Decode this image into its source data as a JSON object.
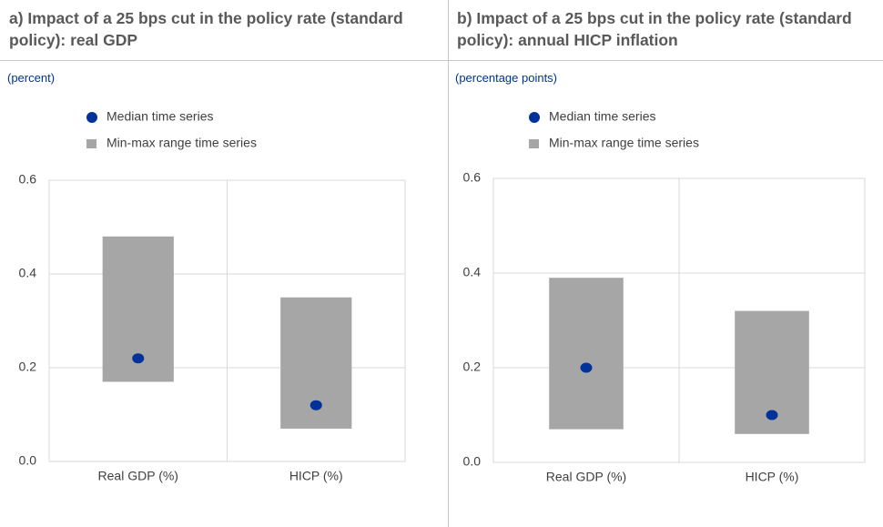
{
  "chart_data": [
    {
      "type": "range",
      "title": "a) Impact of a 25 bps cut in the policy rate (standard policy): real GDP",
      "unit_label": "(percent)",
      "categories": [
        "Real GDP (%)",
        "HICP (%)"
      ],
      "series": [
        {
          "name": "Median time series",
          "color": "#003299",
          "values": [
            0.22,
            0.12
          ]
        },
        {
          "name": "Min-max range time series",
          "color": "#a6a6a6",
          "low": [
            0.17,
            0.07
          ],
          "high": [
            0.48,
            0.35
          ]
        }
      ],
      "ylim": [
        0,
        0.6
      ],
      "yticks": [
        {
          "value": 0,
          "label": "0.0"
        },
        0.2,
        0.4,
        0.6
      ],
      "grid": true
    },
    {
      "type": "range",
      "title": "b) Impact of a 25 bps cut in the policy rate (standard policy): annual HICP inflation",
      "unit_label": "(percentage points)",
      "categories": [
        "Real GDP (%)",
        "HICP (%)"
      ],
      "series": [
        {
          "name": "Median time series",
          "color": "#003299",
          "values": [
            0.2,
            0.1
          ]
        },
        {
          "name": "Min-max range time series",
          "color": "#a6a6a6",
          "low": [
            0.07,
            0.06
          ],
          "high": [
            0.39,
            0.32
          ]
        }
      ],
      "ylim": [
        0,
        0.6
      ],
      "yticks": [
        {
          "value": 0,
          "label": "0.0"
        },
        0.2,
        0.4,
        0.6
      ],
      "grid": true
    }
  ]
}
